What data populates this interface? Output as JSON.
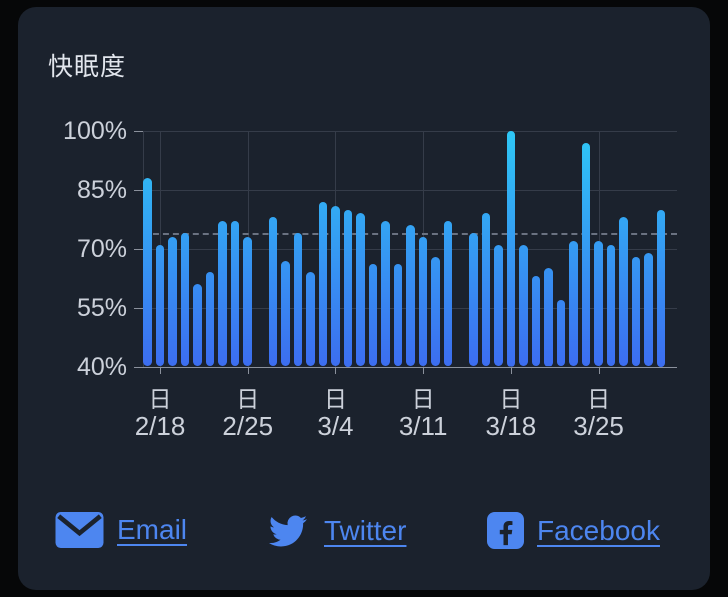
{
  "card": {
    "title": "快眠度"
  },
  "chart_data": {
    "type": "bar",
    "title": "快眠度",
    "ylabel": "",
    "xlabel": "",
    "unit": "%",
    "ylim": [
      40,
      100
    ],
    "yticks": [
      100,
      85,
      70,
      55,
      40
    ],
    "ytick_suffix": "%",
    "average_line": 73.8,
    "grid": true,
    "legend": "none",
    "slots": 42,
    "values": [
      88,
      71,
      73,
      74,
      61,
      64,
      77,
      77,
      73,
      null,
      78,
      67,
      74,
      64,
      82,
      81,
      80,
      79,
      66,
      77,
      66,
      76,
      73,
      68,
      77,
      null,
      74,
      79,
      71,
      100,
      71,
      63,
      65,
      57,
      72,
      97,
      72,
      71,
      78,
      68,
      69,
      80
    ],
    "week_labels": [
      {
        "day": "日",
        "date": "2/18",
        "slot": 1
      },
      {
        "day": "日",
        "date": "2/25",
        "slot": 8
      },
      {
        "day": "日",
        "date": "3/4",
        "slot": 15
      },
      {
        "day": "日",
        "date": "3/11",
        "slot": 22
      },
      {
        "day": "日",
        "date": "3/18",
        "slot": 29
      },
      {
        "day": "日",
        "date": "3/25",
        "slot": 36
      }
    ]
  },
  "share": {
    "email_label": "Email",
    "twitter_label": "Twitter",
    "facebook_label": "Facebook"
  },
  "colors": {
    "page_bg": "#060708",
    "card_bg": "#1b222d",
    "bar_top": "#2ec7f5",
    "bar_bottom": "#3c6df0",
    "gridline": "#353c49",
    "axis": "#8b919c",
    "average_dash": "#6a7281",
    "text_light": "#ccd1da",
    "title_text": "#e2e6ed",
    "link_blue": "#4d86f0"
  }
}
